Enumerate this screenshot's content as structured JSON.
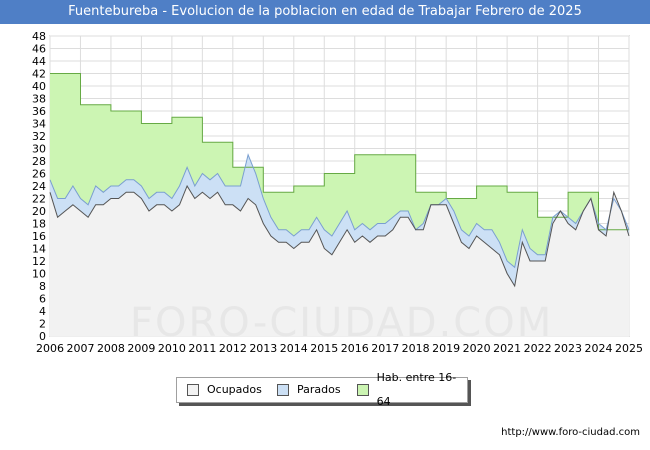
{
  "title": "Fuentebureba - Evolucion de la poblacion en edad de Trabajar Febrero de 2025",
  "source": "http://www.foro-ciudad.com",
  "watermark": "FORO-CIUDAD.COM",
  "colors": {
    "title_bg": "#4f7fc6",
    "hab_fill": "#ccf5b3",
    "hab_line": "#66aa44",
    "parados_fill": "#cce0f5",
    "parados_line": "#7a9fd0",
    "ocupados_fill": "#f2f2f2",
    "ocupados_line": "#555555"
  },
  "legend": [
    {
      "label": "Ocupados",
      "color": "#f2f2f2"
    },
    {
      "label": "Parados",
      "color": "#cce0f5"
    },
    {
      "label": "Hab. entre 16-64",
      "color": "#ccf5b3"
    }
  ],
  "chart_data": {
    "type": "area",
    "title": "Fuentebureba - Evolucion de la poblacion en edad de Trabajar Febrero de 2025",
    "xlabel": "",
    "ylabel": "",
    "xlim": [
      2006,
      2025
    ],
    "ylim": [
      0,
      48
    ],
    "ytick_step": 2,
    "x_ticks": [
      "2006",
      "2007",
      "2008",
      "2009",
      "2010",
      "2011",
      "2012",
      "2013",
      "2014",
      "2015",
      "2016",
      "2017",
      "2018",
      "2019",
      "2020",
      "2021",
      "2022",
      "2023",
      "2024",
      "2025"
    ],
    "grid": true,
    "hab_series": {
      "name": "Hab. entre 16-64",
      "points": [
        [
          2006,
          42
        ],
        [
          2007,
          42
        ],
        [
          2007,
          37
        ],
        [
          2008,
          37
        ],
        [
          2008,
          36
        ],
        [
          2009,
          36
        ],
        [
          2009,
          34
        ],
        [
          2010,
          34
        ],
        [
          2010,
          35
        ],
        [
          2011,
          35
        ],
        [
          2011,
          31
        ],
        [
          2012,
          31
        ],
        [
          2012,
          27
        ],
        [
          2013,
          27
        ],
        [
          2013,
          23
        ],
        [
          2014,
          23
        ],
        [
          2014,
          24
        ],
        [
          2015,
          24
        ],
        [
          2015,
          26
        ],
        [
          2016,
          26
        ],
        [
          2016,
          29
        ],
        [
          2017,
          29
        ],
        [
          2017,
          29
        ],
        [
          2018,
          29
        ],
        [
          2018,
          23
        ],
        [
          2019,
          23
        ],
        [
          2019,
          22
        ],
        [
          2020,
          22
        ],
        [
          2020,
          24
        ],
        [
          2021,
          24
        ],
        [
          2021,
          23
        ],
        [
          2022,
          23
        ],
        [
          2022,
          19
        ],
        [
          2023,
          19
        ],
        [
          2023,
          23
        ],
        [
          2024,
          23
        ],
        [
          2024,
          17
        ],
        [
          2025,
          17
        ]
      ]
    },
    "parados_series": {
      "name": "Parados",
      "values": [
        [
          2006,
          25
        ],
        [
          2006.25,
          22
        ],
        [
          2006.5,
          22
        ],
        [
          2006.75,
          24
        ],
        [
          2007,
          22
        ],
        [
          2007.25,
          21
        ],
        [
          2007.5,
          24
        ],
        [
          2007.75,
          23
        ],
        [
          2008,
          24
        ],
        [
          2008.25,
          24
        ],
        [
          2008.5,
          25
        ],
        [
          2008.75,
          25
        ],
        [
          2009,
          24
        ],
        [
          2009.25,
          22
        ],
        [
          2009.5,
          23
        ],
        [
          2009.75,
          23
        ],
        [
          2010,
          22
        ],
        [
          2010.25,
          24
        ],
        [
          2010.5,
          27
        ],
        [
          2010.75,
          24
        ],
        [
          2011,
          26
        ],
        [
          2011.25,
          25
        ],
        [
          2011.5,
          26
        ],
        [
          2011.75,
          24
        ],
        [
          2012,
          24
        ],
        [
          2012.25,
          24
        ],
        [
          2012.5,
          29
        ],
        [
          2012.75,
          26
        ],
        [
          2013,
          22
        ],
        [
          2013.25,
          19
        ],
        [
          2013.5,
          17
        ],
        [
          2013.75,
          17
        ],
        [
          2014,
          16
        ],
        [
          2014.25,
          17
        ],
        [
          2014.5,
          17
        ],
        [
          2014.75,
          19
        ],
        [
          2015,
          17
        ],
        [
          2015.25,
          16
        ],
        [
          2015.5,
          18
        ],
        [
          2015.75,
          20
        ],
        [
          2016,
          17
        ],
        [
          2016.25,
          18
        ],
        [
          2016.5,
          17
        ],
        [
          2016.75,
          18
        ],
        [
          2017,
          18
        ],
        [
          2017.25,
          19
        ],
        [
          2017.5,
          20
        ],
        [
          2017.75,
          20
        ],
        [
          2018,
          17
        ],
        [
          2018.25,
          18
        ],
        [
          2018.5,
          21
        ],
        [
          2018.75,
          21
        ],
        [
          2019,
          22
        ],
        [
          2019.25,
          20
        ],
        [
          2019.5,
          17
        ],
        [
          2019.75,
          16
        ],
        [
          2020,
          18
        ],
        [
          2020.25,
          17
        ],
        [
          2020.5,
          17
        ],
        [
          2020.75,
          15
        ],
        [
          2021,
          12
        ],
        [
          2021.25,
          11
        ],
        [
          2021.5,
          17
        ],
        [
          2021.75,
          14
        ],
        [
          2022,
          13
        ],
        [
          2022.25,
          13
        ],
        [
          2022.5,
          19
        ],
        [
          2022.75,
          20
        ],
        [
          2023,
          19
        ],
        [
          2023.25,
          18
        ],
        [
          2023.5,
          20
        ],
        [
          2023.75,
          22
        ],
        [
          2024,
          18
        ],
        [
          2024.25,
          17
        ],
        [
          2024.5,
          22
        ],
        [
          2024.75,
          20
        ],
        [
          2025,
          17
        ]
      ]
    },
    "ocupados_series": {
      "name": "Ocupados",
      "values": [
        [
          2006,
          23
        ],
        [
          2006.25,
          19
        ],
        [
          2006.5,
          20
        ],
        [
          2006.75,
          21
        ],
        [
          2007,
          20
        ],
        [
          2007.25,
          19
        ],
        [
          2007.5,
          21
        ],
        [
          2007.75,
          21
        ],
        [
          2008,
          22
        ],
        [
          2008.25,
          22
        ],
        [
          2008.5,
          23
        ],
        [
          2008.75,
          23
        ],
        [
          2009,
          22
        ],
        [
          2009.25,
          20
        ],
        [
          2009.5,
          21
        ],
        [
          2009.75,
          21
        ],
        [
          2010,
          20
        ],
        [
          2010.25,
          21
        ],
        [
          2010.5,
          24
        ],
        [
          2010.75,
          22
        ],
        [
          2011,
          23
        ],
        [
          2011.25,
          22
        ],
        [
          2011.5,
          23
        ],
        [
          2011.75,
          21
        ],
        [
          2012,
          21
        ],
        [
          2012.25,
          20
        ],
        [
          2012.5,
          22
        ],
        [
          2012.75,
          21
        ],
        [
          2013,
          18
        ],
        [
          2013.25,
          16
        ],
        [
          2013.5,
          15
        ],
        [
          2013.75,
          15
        ],
        [
          2014,
          14
        ],
        [
          2014.25,
          15
        ],
        [
          2014.5,
          15
        ],
        [
          2014.75,
          17
        ],
        [
          2015,
          14
        ],
        [
          2015.25,
          13
        ],
        [
          2015.5,
          15
        ],
        [
          2015.75,
          17
        ],
        [
          2016,
          15
        ],
        [
          2016.25,
          16
        ],
        [
          2016.5,
          15
        ],
        [
          2016.75,
          16
        ],
        [
          2017,
          16
        ],
        [
          2017.25,
          17
        ],
        [
          2017.5,
          19
        ],
        [
          2017.75,
          19
        ],
        [
          2018,
          17
        ],
        [
          2018.25,
          17
        ],
        [
          2018.5,
          21
        ],
        [
          2018.75,
          21
        ],
        [
          2019,
          21
        ],
        [
          2019.25,
          18
        ],
        [
          2019.5,
          15
        ],
        [
          2019.75,
          14
        ],
        [
          2020,
          16
        ],
        [
          2020.25,
          15
        ],
        [
          2020.5,
          14
        ],
        [
          2020.75,
          13
        ],
        [
          2021,
          10
        ],
        [
          2021.25,
          8
        ],
        [
          2021.5,
          15
        ],
        [
          2021.75,
          12
        ],
        [
          2022,
          12
        ],
        [
          2022.25,
          12
        ],
        [
          2022.5,
          18
        ],
        [
          2022.75,
          20
        ],
        [
          2023,
          18
        ],
        [
          2023.25,
          17
        ],
        [
          2023.5,
          20
        ],
        [
          2023.75,
          22
        ],
        [
          2024,
          17
        ],
        [
          2024.25,
          16
        ],
        [
          2024.5,
          23
        ],
        [
          2024.75,
          20
        ],
        [
          2025,
          16
        ]
      ]
    }
  }
}
